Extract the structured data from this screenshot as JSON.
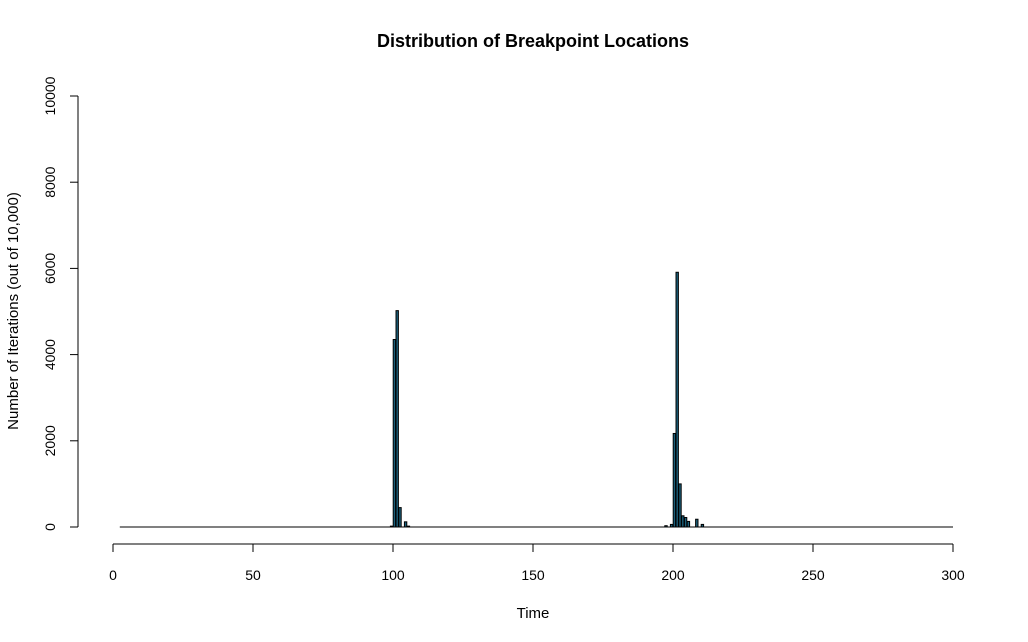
{
  "chart_data": {
    "type": "bar",
    "title": "Distribution of Breakpoint Locations",
    "xlabel": "Time",
    "ylabel": "Number of Iterations (out of 10,000)",
    "xlim": [
      0,
      300
    ],
    "ylim": [
      0,
      10000
    ],
    "x_ticks": [
      0,
      50,
      100,
      150,
      200,
      250,
      300
    ],
    "y_ticks": [
      0,
      2000,
      4000,
      6000,
      8000,
      10000
    ],
    "x_tick_labels": [
      "0",
      "50",
      "100",
      "150",
      "200",
      "250",
      "300"
    ],
    "y_tick_labels": [
      "0",
      "2000",
      "4000",
      "6000",
      "8000",
      "10000"
    ],
    "grid": false,
    "bar_color": "#1a5f7a",
    "x_range_all": [
      1,
      300
    ],
    "bars": [
      {
        "x": 99,
        "value": 20
      },
      {
        "x": 100,
        "value": 4350
      },
      {
        "x": 101,
        "value": 5020
      },
      {
        "x": 102,
        "value": 450
      },
      {
        "x": 104,
        "value": 120
      },
      {
        "x": 105,
        "value": 20
      },
      {
        "x": 197,
        "value": 30
      },
      {
        "x": 199,
        "value": 60
      },
      {
        "x": 200,
        "value": 2170
      },
      {
        "x": 201,
        "value": 5910
      },
      {
        "x": 202,
        "value": 1000
      },
      {
        "x": 203,
        "value": 260
      },
      {
        "x": 204,
        "value": 220
      },
      {
        "x": 205,
        "value": 130
      },
      {
        "x": 208,
        "value": 180
      },
      {
        "x": 210,
        "value": 60
      }
    ]
  }
}
